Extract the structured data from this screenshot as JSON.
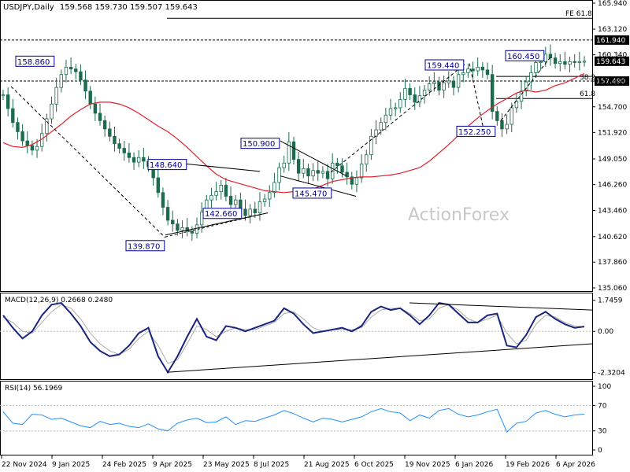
{
  "header": {
    "symbol_tf": "USDJPY,Daily",
    "ohlc": "159.568 159.730 159.507 159.643"
  },
  "watermark": "ActionForex",
  "chart_data": [
    {
      "type": "candlestick",
      "panel": "price",
      "title": "USDJPY,Daily",
      "y_ticks": [
        "165.940",
        "163.120",
        "160.340",
        "157.490",
        "154.700",
        "151.920",
        "149.050",
        "146.260",
        "143.460",
        "140.620",
        "137.860",
        "135.060"
      ],
      "ylim": [
        135.06,
        165.94
      ],
      "x_ticks": [
        "22 Nov 2024",
        "9 Jan 2025",
        "24 Feb 2025",
        "9 Apr 2025",
        "23 May 2025",
        "8 Jul 2025",
        "21 Aug 2025",
        "6 Oct 2025",
        "19 Nov 2025",
        "6 Jan 2026",
        "19 Feb 2026",
        "6 Apr 2026"
      ],
      "current_price": "159.643",
      "price_levels": [
        {
          "value": 164.3,
          "label": "FE 61.8"
        },
        {
          "value": 161.94,
          "label": "161.940"
        },
        {
          "value": 157.49,
          "label": "157.490"
        },
        {
          "value": 158.0,
          "label": "38.2"
        },
        {
          "value": 155.6,
          "label": "61.8"
        }
      ],
      "annotations": [
        "158.860",
        "148.640",
        "139.870",
        "142.660",
        "150.900",
        "145.470",
        "159.440",
        "152.250",
        "160.450"
      ],
      "series": [
        {
          "name": "Price",
          "values": [
            156.0,
            154.5,
            153.0,
            152.0,
            151.0,
            150.5,
            150.0,
            150.4,
            151.8,
            153.4,
            155.0,
            156.8,
            158.2,
            159.0,
            158.8,
            158.5,
            157.6,
            156.4,
            155.0,
            154.0,
            153.2,
            152.3,
            151.5,
            150.7,
            150.2,
            149.7,
            149.2,
            148.7,
            149.2,
            148.8,
            148.2,
            147.0,
            145.4,
            143.8,
            142.4,
            142.0,
            141.3,
            141.6,
            141.2,
            141.0,
            141.9,
            143.3,
            144.6,
            145.1,
            145.5,
            146.2,
            145.0,
            144.1,
            144.6,
            143.6,
            142.9,
            143.6,
            143.2,
            144.4,
            144.7,
            145.4,
            146.5,
            148.1,
            148.6,
            150.9,
            149.0,
            147.5,
            148.0,
            147.2,
            147.8,
            147.5,
            147.7,
            146.9,
            148.6,
            148.3,
            147.6,
            147.1,
            146.3,
            147.0,
            148.5,
            149.5,
            151.5,
            152.2,
            153.0,
            153.8,
            154.5,
            154.6,
            155.5,
            156.7,
            156.0,
            155.2,
            155.9,
            156.5,
            157.2,
            157.4,
            156.5,
            157.3,
            157.5,
            156.8,
            158.2,
            158.4,
            158.8,
            158.6,
            159.0,
            158.7,
            158.2,
            154.2,
            153.2,
            152.3,
            152.8,
            154.6,
            155.3,
            156.4,
            157.4,
            158.4,
            159.5,
            159.6,
            160.4,
            160.0,
            159.4,
            159.6,
            159.3,
            159.6,
            159.5,
            159.6,
            159.643
          ]
        },
        {
          "name": "MA",
          "values": [
            150.8,
            150.4,
            150.3,
            150.6,
            151.2,
            152.0,
            152.8,
            153.7,
            154.4,
            155.0,
            155.2,
            155.2,
            155.0,
            154.6,
            154.0,
            153.3,
            152.6,
            152.0,
            151.2,
            150.3,
            149.3,
            148.3,
            147.4,
            146.8,
            146.5,
            146.2,
            145.9,
            145.6,
            145.5,
            145.4,
            145.5,
            145.6,
            145.8,
            146.2,
            146.6,
            146.8,
            147.0,
            147.1,
            147.1,
            147.2,
            147.3,
            147.5,
            147.8,
            148.1,
            148.8,
            149.7,
            150.6,
            151.6,
            152.6,
            153.5,
            154.3,
            155.0,
            155.6,
            156.2,
            156.5,
            156.3,
            156.5,
            157.0,
            157.3,
            157.8,
            158.3
          ]
        }
      ]
    },
    {
      "type": "line",
      "panel": "MACD",
      "title": "MACD(12,26,9) 0.2668 0.2480",
      "y_ticks": [
        "1.7459",
        "0.00",
        "-2.3204"
      ],
      "ylim": [
        -2.6,
        2.0
      ],
      "series": [
        {
          "name": "MACD",
          "values": [
            0.9,
            0.2,
            -0.4,
            0.0,
            0.9,
            1.5,
            1.6,
            1.0,
            0.3,
            -0.6,
            -1.1,
            -1.4,
            -1.3,
            -0.8,
            -0.1,
            0.2,
            -1.4,
            -2.3,
            -1.4,
            -0.3,
            0.7,
            -0.3,
            -0.5,
            0.3,
            0.2,
            0.0,
            0.2,
            0.4,
            0.6,
            1.3,
            1.0,
            0.4,
            -0.1,
            0.0,
            0.1,
            0.2,
            0.0,
            0.3,
            1.1,
            1.4,
            1.2,
            1.3,
            0.9,
            0.4,
            0.9,
            1.6,
            1.5,
            1.0,
            0.5,
            0.5,
            0.9,
            1.0,
            -0.8,
            -0.9,
            -0.2,
            0.8,
            1.1,
            0.7,
            0.4,
            0.2,
            0.27
          ]
        },
        {
          "name": "Signal",
          "values": [
            0.8,
            0.5,
            0.0,
            -0.1,
            0.5,
            1.1,
            1.5,
            1.3,
            0.7,
            -0.1,
            -0.7,
            -1.1,
            -1.3,
            -1.0,
            -0.4,
            0.0,
            -0.8,
            -1.8,
            -1.6,
            -0.7,
            0.3,
            0.1,
            -0.3,
            0.0,
            0.2,
            0.1,
            0.1,
            0.3,
            0.5,
            1.0,
            1.1,
            0.7,
            0.2,
            0.0,
            0.1,
            0.1,
            0.1,
            0.2,
            0.8,
            1.2,
            1.3,
            1.3,
            1.0,
            0.6,
            0.7,
            1.3,
            1.5,
            1.2,
            0.7,
            0.5,
            0.7,
            0.9,
            -0.1,
            -0.7,
            -0.5,
            0.4,
            0.9,
            0.8,
            0.5,
            0.3,
            0.25
          ]
        }
      ]
    },
    {
      "type": "line",
      "panel": "RSI",
      "title": "RSI(14) 56.1969",
      "y_ticks": [
        "100",
        "70",
        "30",
        "0"
      ],
      "ylim": [
        0,
        100
      ],
      "series": [
        {
          "name": "RSI",
          "values": [
            60,
            42,
            40,
            56,
            55,
            48,
            50,
            44,
            38,
            35,
            45,
            40,
            42,
            37,
            35,
            41,
            33,
            30,
            42,
            47,
            50,
            43,
            44,
            52,
            40,
            46,
            45,
            50,
            55,
            62,
            57,
            50,
            44,
            50,
            48,
            44,
            48,
            52,
            60,
            65,
            60,
            58,
            46,
            55,
            50,
            62,
            65,
            56,
            52,
            55,
            60,
            64,
            28,
            42,
            45,
            58,
            62,
            56,
            52,
            55,
            56.2
          ]
        }
      ]
    }
  ]
}
